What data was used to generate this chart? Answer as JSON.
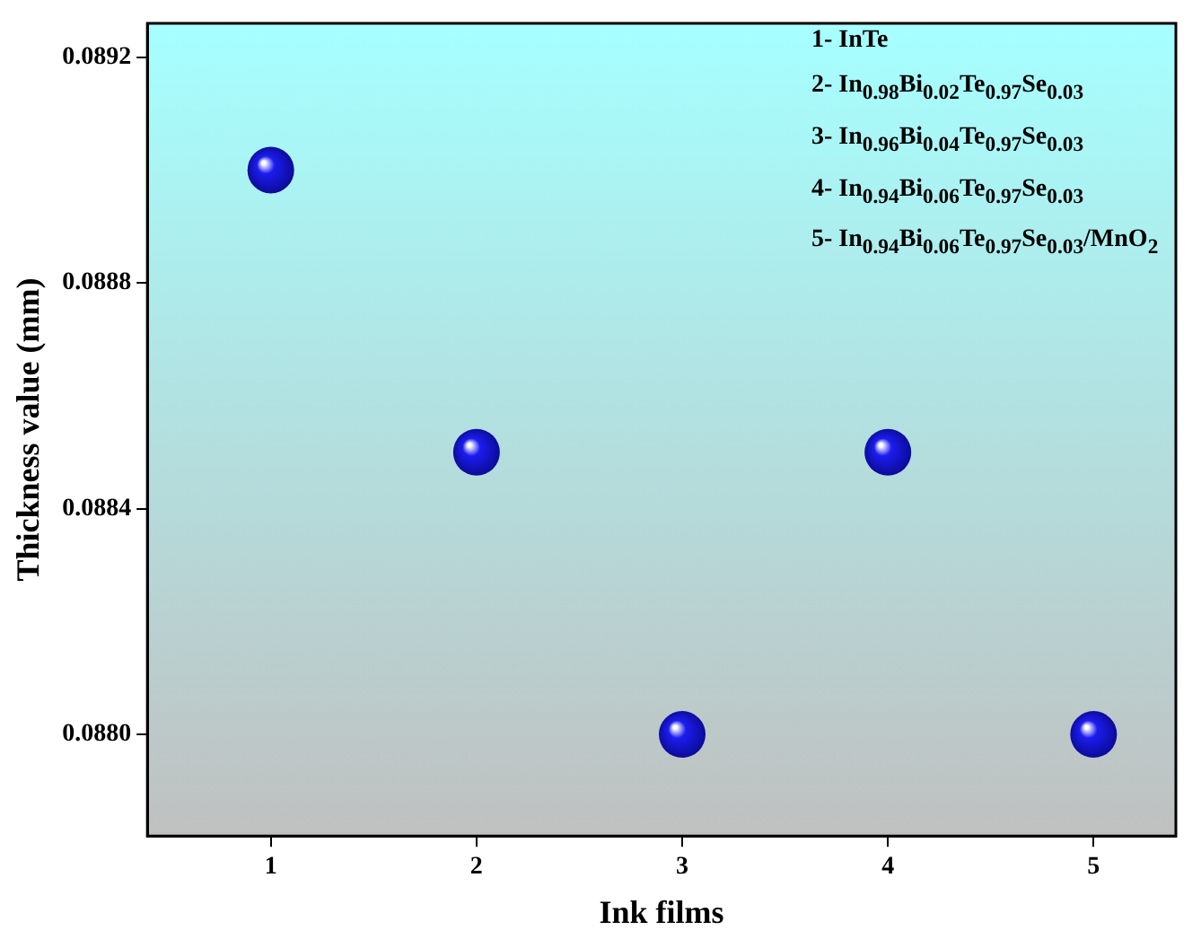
{
  "chart_data": {
    "type": "scatter",
    "xlabel": "Ink films",
    "ylabel": "Thickness value (mm)",
    "x": [
      1,
      2,
      3,
      4,
      5
    ],
    "series": [
      {
        "color": "#1c1cf0",
        "values": [
          0.089,
          0.0885,
          0.088,
          0.0885,
          0.088
        ]
      }
    ],
    "xlim": [
      0.4,
      5.4
    ],
    "xticks": [
      1,
      2,
      3,
      4,
      5
    ],
    "ylim": [
      0.08782,
      0.08926
    ],
    "yticks": [
      {
        "value": 0.088,
        "label": "0.0880"
      },
      {
        "value": 0.0884,
        "label": "0.0884"
      },
      {
        "value": 0.0888,
        "label": "0.0888"
      },
      {
        "value": 0.0892,
        "label": "0.0892"
      }
    ],
    "marker": "circle",
    "grid": false,
    "legend": false,
    "annotations": [
      "1- InTe",
      "2- In$_{0.98}$Bi$_{0.02}$Te$_{0.97}$Se$_{0.03}$",
      "3- In$_{0.96}$Bi$_{0.04}$Te$_{0.97}$Se$_{0.03}$",
      "4- In$_{0.94}$Bi$_{0.06}$Te$_{0.97}$Se$_{0.03}$",
      "5- In$_{0.94}$Bi$_{0.06}$Te$_{0.97}$Se$_{0.03}$/MnO$_{2}$"
    ]
  }
}
